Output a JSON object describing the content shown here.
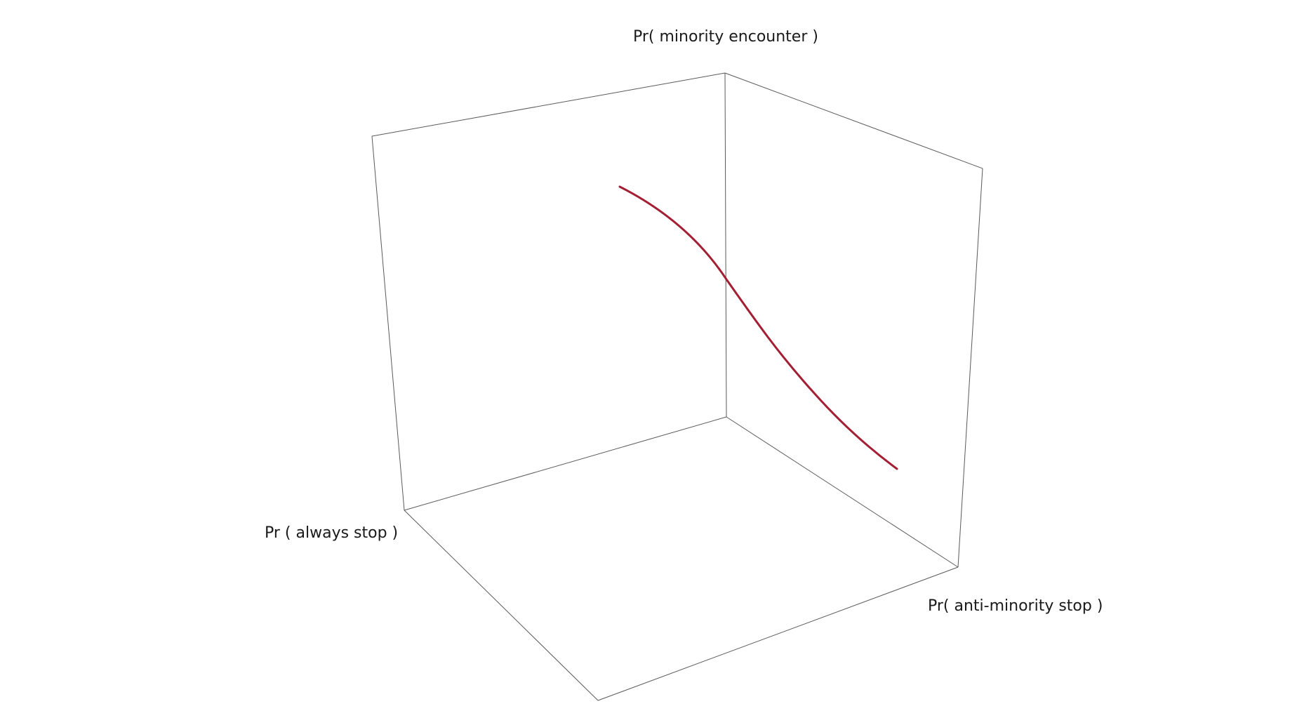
{
  "axes": {
    "vertical_label": "Pr( minority encounter )",
    "left_label": "Pr ( always stop )",
    "right_label": "Pr( anti-minority stop )"
  },
  "colors": {
    "curve": "#a31f34",
    "box_edges": "#5a5a5a",
    "background": "#ffffff"
  },
  "chart_data": {
    "type": "line",
    "projection": "3d",
    "x_label": "Pr ( always stop )",
    "y_label": "Pr( anti-minority stop )",
    "z_label": "Pr( minority encounter )",
    "grid": false,
    "series": [
      {
        "values": "smooth decreasing sigmoid curve across the box"
      }
    ]
  }
}
